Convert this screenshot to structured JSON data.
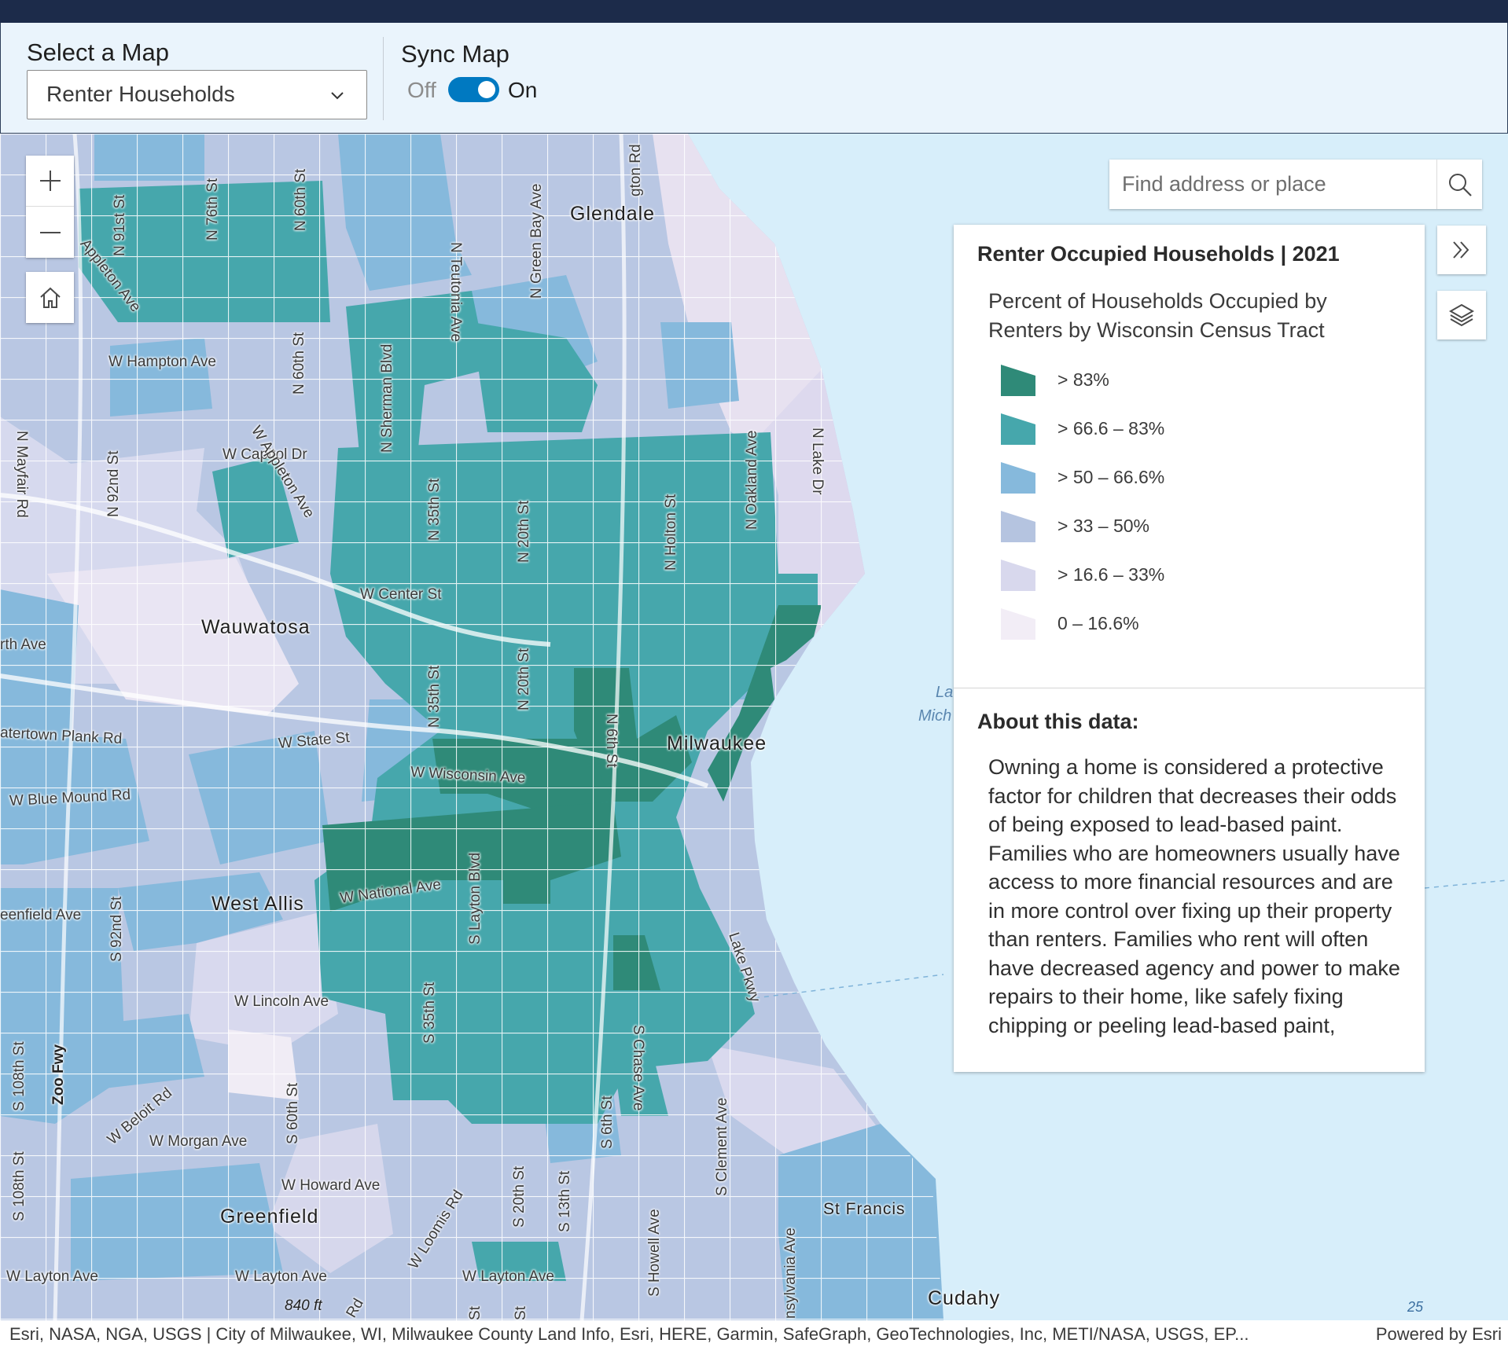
{
  "toolbar": {
    "select_label": "Select a Map",
    "selected_map": "Renter Households",
    "sync_label": "Sync Map",
    "toggle_off": "Off",
    "toggle_on": "On",
    "sync_enabled": true
  },
  "map": {
    "search_placeholder": "Find address or place",
    "controls": {
      "zoom_in_icon": "plus-icon",
      "zoom_out_icon": "minus-icon",
      "home_icon": "home-icon",
      "search_icon": "search-icon",
      "expand_icon": "double-chevron-right-icon",
      "layers_icon": "layers-icon"
    },
    "places": {
      "glendale": "Glendale",
      "wauwatosa": "Wauwatosa",
      "milwaukee": "Milwaukee",
      "west_allis": "West Allis",
      "greenfield": "Greenfield",
      "st_francis": "St Francis",
      "cudahy": "Cudahy"
    },
    "water": {
      "lake_1": "La",
      "lake_2": "Mich"
    },
    "streets": {
      "n91st": "N 91st St",
      "n76th": "N 76th St",
      "n60th_top": "N 60th St",
      "n_edge": "N",
      "ngreenbay": "N Green Bay Ave",
      "nteutonia": "N Teutonia Ave",
      "ngton": "gton Rd",
      "appleton_top": "Appleton Ave",
      "whampton": "W Hampton Ave",
      "n60th_mid": "N 60th St",
      "nsherman": "N Sherman Blvd",
      "nmayfair": "N Mayfair Rd",
      "n92nd": "N 92nd St",
      "wcapitol": "W Capitol Dr",
      "wappleton": "W Appleton Ave",
      "n35th": "N 35th St",
      "n20th_top": "N 20th St",
      "nholton": "N Holton St",
      "noakland": "N Oakland Ave",
      "nlake": "N Lake Dr",
      "wcenter": "W Center St",
      "north_ave": "rth Ave",
      "n35th_low": "N 35th St",
      "n20th_low": "N 20th St",
      "watertown": "atertown Plank Rd",
      "wstate": "W State St",
      "n6th": "N 6th St",
      "wbluemound": "W Blue Mound Rd",
      "wwisconsin": "W Wisconsin Ave",
      "greenfield_ave": "eenfield Ave",
      "wnational": "W National Ave",
      "slayton": "S Layton Blvd",
      "lakepkwy": "Lake Pkwy",
      "s92nd": "S 92nd St",
      "wlincoln": "W Lincoln Ave",
      "s35th": "S 35th St",
      "schase": "S Chase Ave",
      "s108th_top": "S 108th St",
      "zoofwy": "Zoo Fwy",
      "wbeloit": "W Beloit Rd",
      "s60th": "S 60th St",
      "s6th": "S 6th St",
      "sclement": "S Clement Ave",
      "wmorgan": "W Morgan Ave",
      "whoward": "W Howard Ave",
      "wloomis": "W Loomis Rd",
      "s108th_low": "S 108th St",
      "s20th": "S 20th St",
      "s13th": "S 13th St",
      "showell": "S Howell Ave",
      "spennsylvania": "nsylvania Ave",
      "wlayton_left": "W Layton Ave",
      "wlayton_mid": "W Layton Ave",
      "wlayton_right": "W Layton Ave",
      "rs": "Rd",
      "st1": "St",
      "st2": "St"
    },
    "scale": "840 ft",
    "coord_mark": "25"
  },
  "legend": {
    "title": "Renter Occupied Households | 2021",
    "subtitle": "Percent of Households Occupied by Renters by Wisconsin Census Tract",
    "classes": [
      {
        "label": "> 83%",
        "color": "#2f8a78"
      },
      {
        "label": "> 66.6 – 83%",
        "color": "#46a7ac"
      },
      {
        "label": "> 50 – 66.6%",
        "color": "#86b9dc"
      },
      {
        "label": "> 33 – 50%",
        "color": "#b5c4e0"
      },
      {
        "label": "> 16.6 – 33%",
        "color": "#d8d8ed"
      },
      {
        "label": "0 – 16.6%",
        "color": "#f2edf6"
      }
    ],
    "about_title": "About this data:",
    "about_text": "Owning a home is considered a protective factor for children that decreases their odds of being exposed to lead-based paint. Families who are homeowners usually have access to more financial resources and are in more control over fixing up their property than renters. Families who rent will often have decreased agency and power to make repairs to their home, like safely fixing chipping or peeling lead-based paint,"
  },
  "attribution": {
    "text": "Esri, NASA, NGA, USGS | City of Milwaukee, WI, Milwaukee County Land Info, Esri, HERE, Garmin, SafeGraph, GeoTechnologies, Inc, METI/NASA, USGS, EP...",
    "powered": "Powered by Esri"
  }
}
